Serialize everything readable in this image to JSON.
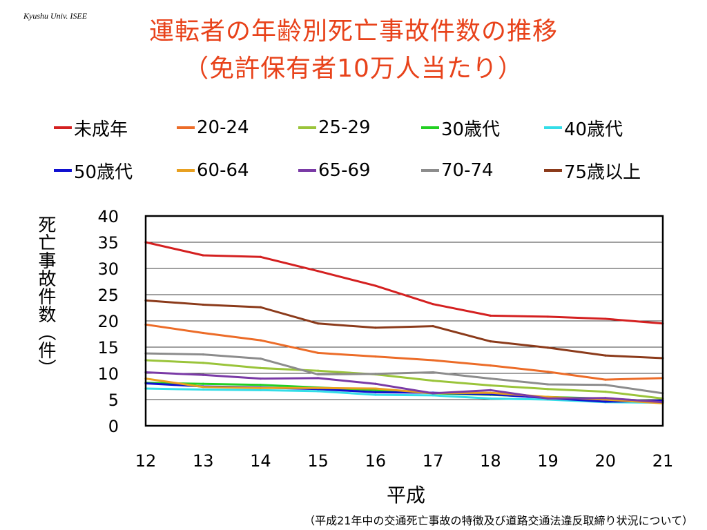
{
  "watermark": "Kyushu Univ. ISEE",
  "chart_data": {
    "type": "line",
    "title": "運転者の年齢別死亡事故件数の推移",
    "subtitle": "（免許保有者10万人当たり）",
    "xlabel": "平成",
    "ylabel": "死亡事故件数（件）",
    "x": [
      12,
      13,
      14,
      15,
      16,
      17,
      18,
      19,
      20,
      21
    ],
    "ylim": [
      0,
      40
    ],
    "yticks": [
      0,
      5,
      10,
      15,
      20,
      25,
      30,
      35,
      40
    ],
    "grid": true,
    "legend_position": "top",
    "series": [
      {
        "name": "未成年",
        "color": "#d42020",
        "values": [
          35.0,
          32.5,
          32.2,
          29.5,
          26.7,
          23.2,
          21.0,
          20.8,
          20.4,
          19.5
        ]
      },
      {
        "name": "20-24",
        "color": "#ec6c28",
        "values": [
          19.3,
          17.7,
          16.3,
          13.9,
          13.2,
          12.5,
          11.5,
          10.3,
          8.8,
          9.1
        ]
      },
      {
        "name": "25-29",
        "color": "#9ac43a",
        "values": [
          12.5,
          12.0,
          11.0,
          10.5,
          9.8,
          8.6,
          7.7,
          7.0,
          6.5,
          5.2
        ]
      },
      {
        "name": "30歳代",
        "color": "#22d022",
        "values": [
          8.2,
          8.0,
          7.8,
          7.3,
          6.8,
          6.2,
          5.9,
          5.5,
          5.2,
          4.6
        ]
      },
      {
        "name": "40歳代",
        "color": "#33dde8",
        "values": [
          7.1,
          6.9,
          6.8,
          6.6,
          5.9,
          5.8,
          5.2,
          5.0,
          4.5,
          4.4
        ]
      },
      {
        "name": "50歳代",
        "color": "#1010d0",
        "values": [
          8.1,
          7.5,
          7.3,
          7.0,
          6.4,
          6.3,
          6.0,
          5.3,
          4.6,
          4.8
        ]
      },
      {
        "name": "60-64",
        "color": "#e8a020",
        "values": [
          9.0,
          7.4,
          7.2,
          7.2,
          7.1,
          6.2,
          6.3,
          5.5,
          5.0,
          4.3
        ]
      },
      {
        "name": "65-69",
        "color": "#7a3aa6",
        "values": [
          10.2,
          9.7,
          9.0,
          9.1,
          8.0,
          6.2,
          6.8,
          5.2,
          5.3,
          4.5
        ]
      },
      {
        "name": "70-74",
        "color": "#8c8c8c",
        "values": [
          13.8,
          13.6,
          12.8,
          9.8,
          9.9,
          10.2,
          9.0,
          7.9,
          7.8,
          6.2
        ]
      },
      {
        "name": "75歳以上",
        "color": "#8b3a1a",
        "values": [
          23.9,
          23.1,
          22.6,
          19.5,
          18.7,
          19.0,
          16.1,
          14.9,
          13.4,
          12.9
        ]
      }
    ]
  },
  "footnote": "（平成21年中の交通死亡事故の特徴及び道路交通法違反取締り状況について）"
}
